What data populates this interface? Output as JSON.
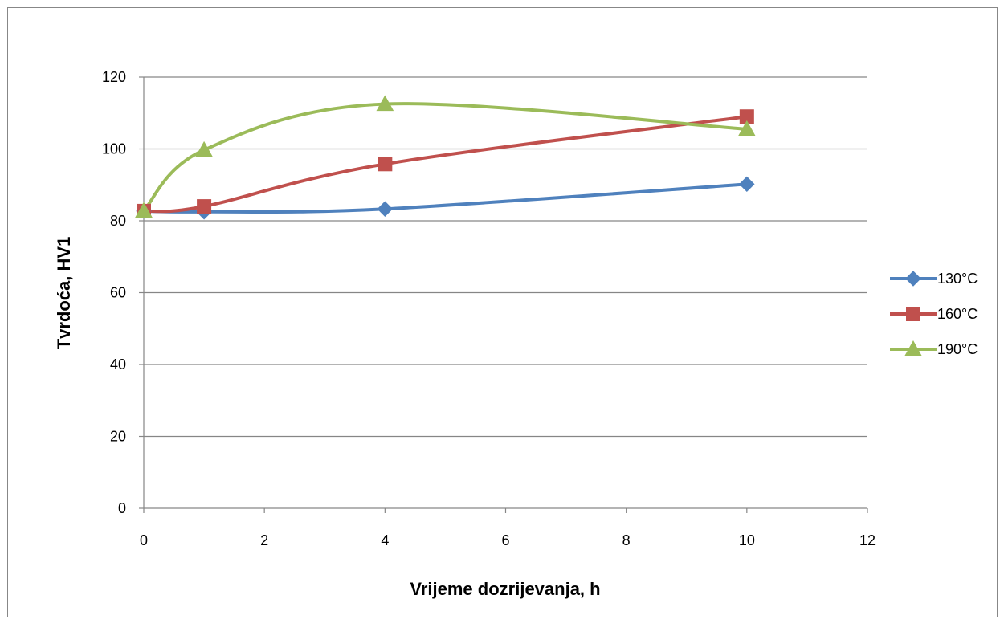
{
  "chart_data": {
    "type": "line",
    "title": "",
    "xlabel": "Vrijeme dozrijevanja, h",
    "ylabel": "Tvrdoća, HV1",
    "xlim": [
      0,
      12
    ],
    "ylim": [
      0,
      120
    ],
    "xticks": [
      "0",
      "2",
      "4",
      "6",
      "8",
      "10",
      "12"
    ],
    "yticks": [
      "0",
      "20",
      "40",
      "60",
      "80",
      "100",
      "120"
    ],
    "grid": "horizontal",
    "legend_position": "right",
    "smooth": true,
    "series": [
      {
        "name": "130°C",
        "marker": "diamond",
        "color": "#4F81BD",
        "x": [
          0,
          1,
          4,
          10
        ],
        "y": [
          82.7,
          82.5,
          83.3,
          90.2
        ]
      },
      {
        "name": "160°C",
        "marker": "square",
        "color": "#C0504D",
        "x": [
          0,
          1,
          4,
          10
        ],
        "y": [
          82.7,
          84.0,
          95.8,
          109.0
        ]
      },
      {
        "name": "190°C",
        "marker": "triangle",
        "color": "#9BBB59",
        "x": [
          0,
          1,
          4,
          10
        ],
        "y": [
          82.8,
          99.7,
          112.5,
          105.5
        ]
      }
    ]
  }
}
